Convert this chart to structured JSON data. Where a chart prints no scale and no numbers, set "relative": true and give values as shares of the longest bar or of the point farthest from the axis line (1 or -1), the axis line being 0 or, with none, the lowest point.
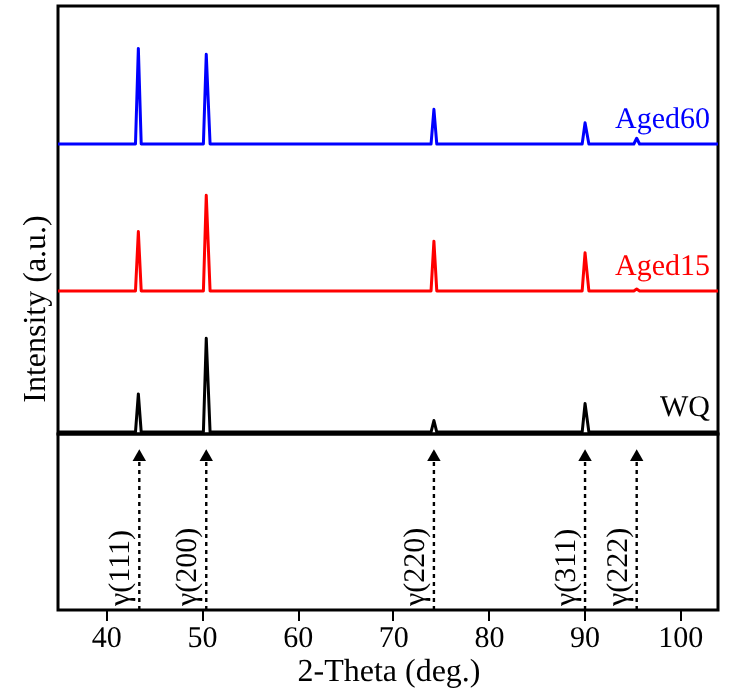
{
  "chart_data": {
    "type": "line",
    "xlabel": "2-Theta (deg.)",
    "ylabel": "Intensity (a.u.)",
    "relative": true,
    "tick_labels": "x",
    "xlim": [
      35,
      104
    ],
    "xticks": [
      40,
      50,
      60,
      70,
      80,
      90,
      100
    ],
    "x": [
      35,
      43.1,
      43.4,
      43.7,
      50.2,
      50.5,
      50.9,
      74.0,
      74.3,
      74.6,
      89.8,
      90.1,
      90.5,
      95.2,
      95.5,
      95.8,
      104
    ],
    "series": [
      {
        "name": "Aged60",
        "color": "#0000ff",
        "values": [
          0.752,
          0.752,
          1.0,
          0.752,
          0.752,
          0.985,
          0.752,
          0.752,
          0.842,
          0.752,
          0.752,
          0.807,
          0.752,
          0.752,
          0.767,
          0.752,
          0.752
        ]
      },
      {
        "name": "Aged15",
        "color": "#ff0000",
        "values": [
          0.371,
          0.371,
          0.525,
          0.371,
          0.371,
          0.619,
          0.371,
          0.371,
          0.5,
          0.371,
          0.371,
          0.47,
          0.371,
          0.371,
          0.376,
          0.371,
          0.371
        ]
      },
      {
        "name": "WQ",
        "color": "#000000",
        "values": [
          0.005,
          0.005,
          0.104,
          0.005,
          0.005,
          0.248,
          0.005,
          0.005,
          0.035,
          0.005,
          0.005,
          0.079,
          0.005,
          0.005,
          0.005,
          0.005,
          0.005
        ]
      }
    ],
    "ref_lines": [
      {
        "axis": "x",
        "value": 43.5,
        "label": "γ(111)",
        "line_style": "dotted"
      },
      {
        "axis": "x",
        "value": 50.5,
        "label": "γ(200)",
        "line_style": "dotted"
      },
      {
        "axis": "x",
        "value": 74.3,
        "label": "γ(220)",
        "line_style": "dotted"
      },
      {
        "axis": "x",
        "value": 90.1,
        "label": "γ(311)",
        "line_style": "dotted"
      },
      {
        "axis": "x",
        "value": 95.5,
        "label": "γ(222)",
        "line_style": "dotted"
      }
    ]
  }
}
